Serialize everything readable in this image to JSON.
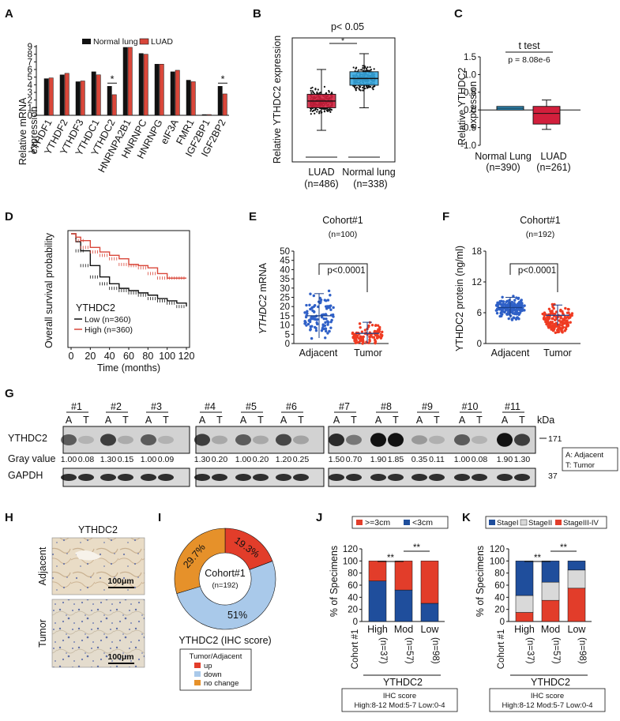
{
  "panel_labels": {
    "A": "A",
    "B": "B",
    "C": "C",
    "D": "D",
    "E": "E",
    "F": "F",
    "G": "G",
    "H": "H",
    "I": "I",
    "J": "J",
    "K": "K"
  },
  "colors": {
    "normal": "#111111",
    "luad": "#d9473a",
    "blue": "#36a9e1",
    "red": "#d21f3c",
    "orange": "#e6912a",
    "lightblue": "#a9c9ea",
    "stage_blue": "#1f4e9c",
    "stage_grey": "#d9d9d9",
    "stage_red": "#e23d2a"
  },
  "chart_data": [
    {
      "id": "A",
      "type": "bar",
      "ylabel": "Relative mRNA expression",
      "ylim": [
        0,
        9
      ],
      "yticks": [
        "0",
        "1",
        "2",
        "3",
        "4",
        "5",
        "6",
        "7",
        "8",
        "9"
      ],
      "categories": [
        "YTHDF1",
        "YTHDF2",
        "YTHDF3",
        "YTHDC1",
        "YTHDC2",
        "HNRNPA2B1",
        "HNRNPC",
        "HNRNPG",
        "eIF3A",
        "FMR1",
        "IGF2BP1",
        "IGF2BP2"
      ],
      "series": [
        {
          "name": "Normal lung",
          "values": [
            4.8,
            5.3,
            4.4,
            5.7,
            3.8,
            8.9,
            8.1,
            6.7,
            5.7,
            4.6,
            0.1,
            3.8
          ]
        },
        {
          "name": "LUAD",
          "values": [
            4.9,
            5.5,
            4.5,
            5.3,
            2.7,
            8.9,
            8.0,
            6.7,
            5.9,
            4.4,
            0.1,
            2.8
          ]
        }
      ],
      "annotations": [
        "*",
        "*"
      ]
    },
    {
      "id": "B",
      "type": "box",
      "ylabel": "Relative YTHDC2 expression",
      "pvalue": "p< 0.05",
      "star": "*",
      "categories": [
        "LUAD",
        "Normal lung"
      ],
      "counts": [
        "(n=486)",
        "(n=338)"
      ],
      "boxes": [
        {
          "q1": 2.4,
          "median": 2.7,
          "q3": 3.0,
          "low": 1.4,
          "high": 4.1
        },
        {
          "q1": 3.4,
          "median": 3.7,
          "q3": 4.0,
          "low": 2.4,
          "high": 4.8
        }
      ],
      "ylim": [
        0,
        5.5
      ]
    },
    {
      "id": "C",
      "type": "box",
      "ylabel": "Relative YTHDC2 expression",
      "title": "t test",
      "pvalue": "p = 8.08e-6",
      "ylim": [
        -1.0,
        1.5
      ],
      "yticks": [
        "-1.0",
        "-0.5",
        "0.0",
        "0.5",
        "1.0",
        "1.5"
      ],
      "categories": [
        "Normal Lung",
        "LUAD"
      ],
      "counts": [
        "(n=390)",
        "(n=261)"
      ],
      "boxes": [
        {
          "q1": 0.0,
          "median": 0.05,
          "q3": 0.1,
          "low": 0.0,
          "high": 0.1
        },
        {
          "q1": -0.4,
          "median": -0.1,
          "q3": 0.1,
          "low": -0.55,
          "high": 0.28
        }
      ]
    },
    {
      "id": "D",
      "type": "line",
      "ylabel": "Overall survival probability",
      "xlabel": "Time (months)",
      "xticks": [
        "0",
        "20",
        "40",
        "60",
        "80",
        "100",
        "120"
      ],
      "legend_title": "YTHDC2",
      "series": [
        {
          "name": "Low (n=360)",
          "x": [
            0,
            5,
            10,
            20,
            30,
            40,
            50,
            60,
            70,
            80,
            90,
            100,
            110,
            120
          ],
          "y": [
            1.0,
            0.93,
            0.85,
            0.72,
            0.62,
            0.56,
            0.52,
            0.5,
            0.48,
            0.46,
            0.43,
            0.41,
            0.39,
            0.36
          ]
        },
        {
          "name": "High (n=360)",
          "x": [
            0,
            5,
            10,
            20,
            30,
            40,
            50,
            60,
            70,
            80,
            90,
            100,
            110,
            120
          ],
          "y": [
            1.0,
            0.97,
            0.94,
            0.88,
            0.84,
            0.81,
            0.78,
            0.73,
            0.72,
            0.7,
            0.65,
            0.61,
            0.61,
            0.61
          ]
        }
      ]
    },
    {
      "id": "E",
      "type": "scatter",
      "title": "Cohort#1",
      "subtitle": "(n=100)",
      "ylabel_italic": "YTHDC2",
      "ylabel_suffix": " mRNA",
      "pvalue": "p<0.0001",
      "ylim": [
        0,
        50
      ],
      "yticks": [
        "0",
        "5",
        "10",
        "15",
        "20",
        "25",
        "30",
        "35",
        "40",
        "45",
        "50"
      ],
      "categories": [
        "Adjacent",
        "Tumor"
      ],
      "means": [
        15,
        5.5
      ],
      "sd": [
        12,
        6
      ]
    },
    {
      "id": "F",
      "type": "scatter",
      "title": "Cohort#1",
      "subtitle": "(n=192)",
      "ylabel": "YTHDC2 protein (ng/ml)",
      "pvalue": "p<0.0001",
      "ylim": [
        0,
        18
      ],
      "yticks": [
        "0",
        "6",
        "12",
        "18"
      ],
      "categories": [
        "Adjacent",
        "Tumor"
      ],
      "means": [
        7,
        5.5
      ],
      "sd": [
        2,
        2
      ]
    },
    {
      "id": "I",
      "type": "pie",
      "center_title": "Cohort#1",
      "center_sub": "(n=192)",
      "caption": "YTHDC2 (IHC score)",
      "legend_title": "Tumor/Adjacent",
      "slices": [
        {
          "name": "up",
          "label": "19.3%",
          "value": 19.3
        },
        {
          "name": "down",
          "label": "51%",
          "value": 51
        },
        {
          "name": "no change",
          "label": "29.7%",
          "value": 29.7
        }
      ]
    },
    {
      "id": "J",
      "type": "bar",
      "stacked": true,
      "ylabel": "% of Specimens",
      "ylim": [
        0,
        120
      ],
      "yticks": [
        "0",
        "20",
        "40",
        "60",
        "80",
        "100",
        "120"
      ],
      "categories": [
        "High",
        "Mod",
        "Low"
      ],
      "counts": [
        "(n=37)",
        "(n=57)",
        "(n=98)"
      ],
      "series": [
        {
          "name": "<3cm",
          "values": [
            67,
            52,
            30
          ]
        },
        {
          "name": ">=3cm",
          "values": [
            33,
            48,
            70
          ]
        }
      ],
      "sig": [
        "**",
        "**"
      ],
      "cohort": "Cohort #1",
      "gene": "YTHDC2",
      "ihc_title": "IHC score",
      "ihc_ranges": "High:8-12  Mod:5-7  Low:0-4"
    },
    {
      "id": "K",
      "type": "bar",
      "stacked": true,
      "ylabel": "% of Specimens",
      "ylim": [
        0,
        120
      ],
      "yticks": [
        "0",
        "20",
        "40",
        "60",
        "80",
        "100",
        "120"
      ],
      "categories": [
        "High",
        "Mod",
        "Low"
      ],
      "counts": [
        "(n=37)",
        "(n=57)",
        "(n=98)"
      ],
      "series": [
        {
          "name": "StageIII-IV",
          "values": [
            15,
            35,
            55
          ]
        },
        {
          "name": "StageII",
          "values": [
            28,
            30,
            30
          ]
        },
        {
          "name": "StageI",
          "values": [
            57,
            35,
            15
          ]
        }
      ],
      "sig": [
        "**",
        "**"
      ],
      "cohort": "Cohort #1",
      "gene": "YTHDC2",
      "ihc_title": "IHC score",
      "ihc_ranges": "High:8-12  Mod:5-7  Low:0-4"
    }
  ],
  "blot": {
    "samples": [
      "#1",
      "#2",
      "#3",
      "#4",
      "#5",
      "#6",
      "#7",
      "#8",
      "#9",
      "#10",
      "#11"
    ],
    "lane_labels": [
      "A",
      "T"
    ],
    "kda": "kDa",
    "target": "YTHDC2",
    "target_kda": "171",
    "gray_label": "Gray value",
    "gray_values": [
      "1.00",
      "0.08",
      "1.30",
      "0.15",
      "1.00",
      "0.09",
      "1.30",
      "0.20",
      "1.00",
      "0.20",
      "1.20",
      "0.25",
      "1.50",
      "0.70",
      "1.90",
      "1.85",
      "0.35",
      "0.11",
      "1.00",
      "0.08",
      "1.90",
      "1.30"
    ],
    "loading": "GAPDH",
    "loading_kda": "37",
    "key_a": "A: Adjacent",
    "key_t": "T: Tumor",
    "intensity": [
      1.0,
      0.08,
      1.3,
      0.15,
      1.0,
      0.09,
      1.3,
      0.2,
      1.0,
      0.2,
      1.2,
      0.25,
      1.5,
      0.7,
      1.9,
      1.85,
      0.35,
      0.11,
      1.0,
      0.08,
      1.9,
      1.3
    ]
  },
  "ihc": {
    "title": "YTHDC2",
    "rows": [
      "Adjacent",
      "Tumor"
    ],
    "scale": "100μm"
  }
}
